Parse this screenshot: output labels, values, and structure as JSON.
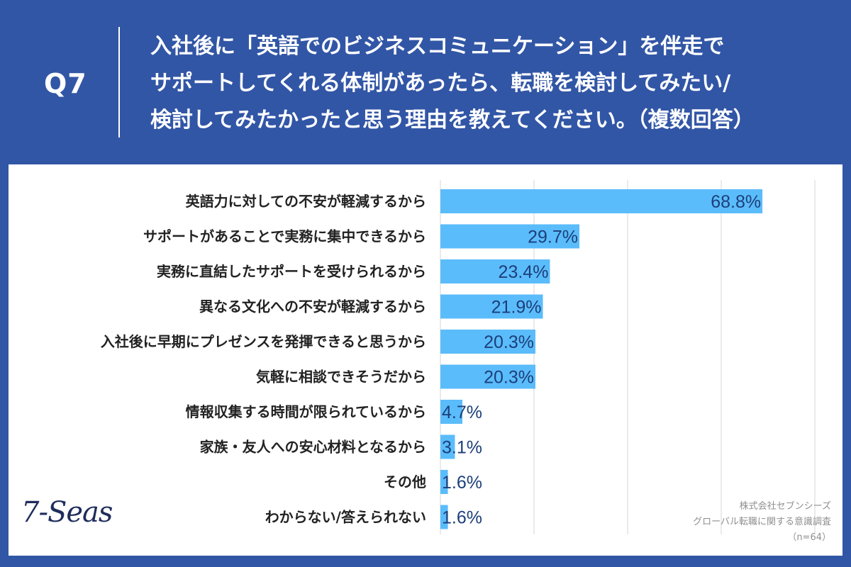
{
  "header": {
    "q_label": "Q7",
    "question_lines": [
      "入社後に「英語でのビジネスコミュニケーション」を伴走で",
      "サポートしてくれる体制があったら、転職を検討してみたい/",
      "検討してみたかったと思う理由を教えてください。（複数回答）"
    ]
  },
  "logo": {
    "text": "7-Seas"
  },
  "source": {
    "company": "株式会社セブンシーズ",
    "survey": "グローバル転職に関する意識調査",
    "sample": "（n=64）"
  },
  "colors": {
    "background": "#3256a6",
    "bar": "#5bbcfb",
    "value_text": "#1c3f7a",
    "label_text": "#222222",
    "grid": "#d4d4d4"
  },
  "chart_data": {
    "type": "bar",
    "orientation": "horizontal",
    "categories": [
      "英語力に対しての不安が軽減するから",
      "サポートがあることで実務に集中できるから",
      "実務に直結したサポートを受けられるから",
      "異なる文化への不安が軽減するから",
      "入社後に早期にプレゼンスを発揮できると思うから",
      "気軽に相談できそうだから",
      "情報収集する時間が限られているから",
      "家族・友人への安心材料となるから",
      "その他",
      "わからない/答えられない"
    ],
    "values": [
      68.8,
      29.7,
      23.4,
      21.9,
      20.3,
      20.3,
      4.7,
      3.1,
      1.6,
      1.6
    ],
    "value_labels": [
      "68.8%",
      "29.7%",
      "23.4%",
      "21.9%",
      "20.3%",
      "20.3%",
      "4.7%",
      "3.1%",
      "1.6%",
      "1.6%"
    ],
    "xlim": [
      0,
      80
    ],
    "grid": true,
    "legend": "none"
  }
}
